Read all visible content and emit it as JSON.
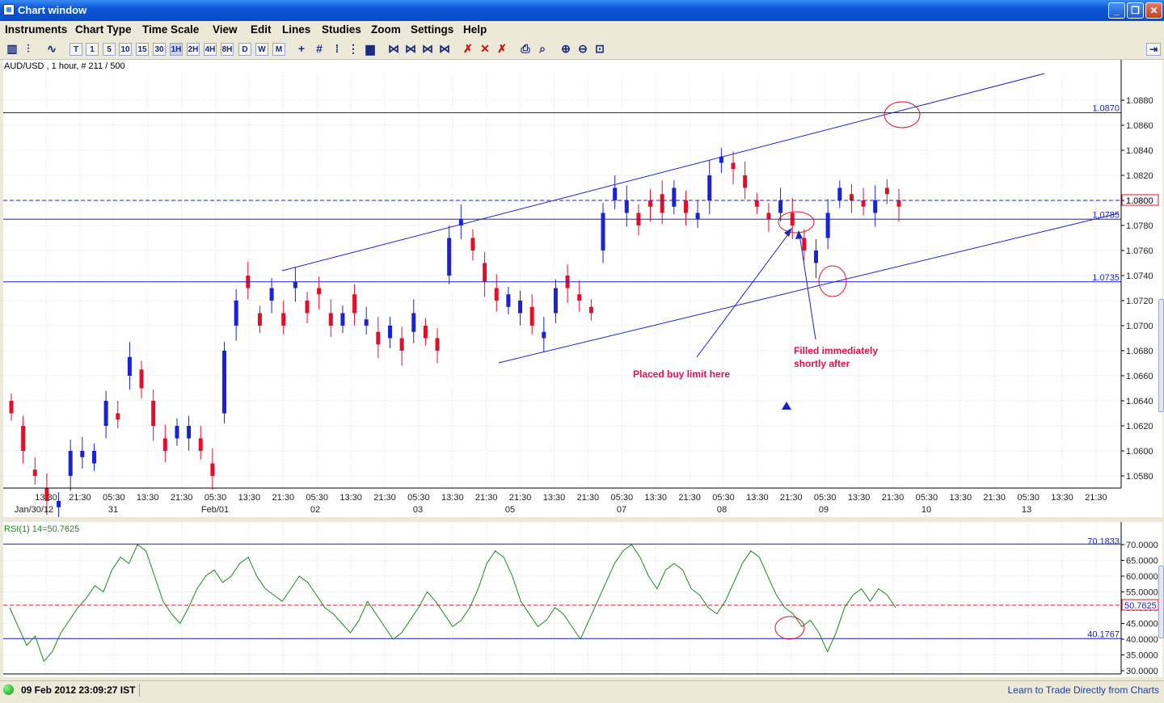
{
  "window": {
    "title": "Chart window",
    "buttons": [
      "_",
      "❐",
      "✕"
    ]
  },
  "menu": [
    "Instruments",
    "Chart Type",
    "Time Scale",
    "View",
    "Edit",
    "Lines",
    "Studies",
    "Zoom",
    "Settings",
    "Help"
  ],
  "toolbar": {
    "timeframes": [
      "T",
      "1",
      "5",
      "10",
      "15",
      "30",
      "1H",
      "2H",
      "4H",
      "8H",
      "D",
      "W",
      "M"
    ],
    "selected_timeframe": "1H",
    "icons": [
      "chart-type-icon",
      "bar-chart-icon",
      "line-chart-icon",
      "crosshair-icon",
      "grid-icon",
      "volume-icon",
      "fib-icon",
      "pitchfork-icon",
      "delete-line-icon",
      "delete-icon",
      "delete-all-icon",
      "print-icon",
      "print-preview-icon",
      "zoom-in-icon",
      "zoom-out-icon",
      "zoom-fit-icon",
      "detach-icon"
    ]
  },
  "main_chart": {
    "header": "AUD/USD , 1 hour, # 211 / 500",
    "price_ticks": [
      "1.0880",
      "1.0860",
      "1.0840",
      "1.0820",
      "1.0800",
      "1.0780",
      "1.0760",
      "1.0740",
      "1.0720",
      "1.0700",
      "1.0680",
      "1.0660",
      "1.0640",
      "1.0620",
      "1.0600",
      "1.0580"
    ],
    "current_price": "1.0800",
    "levels": [
      {
        "label": "1.0870",
        "value": 1.087
      },
      {
        "label": "1.0785",
        "value": 1.0785
      },
      {
        "label": "1.0735",
        "value": 1.0735
      }
    ],
    "time_labels": [
      "13:30",
      "21:30",
      "05:30",
      "13:30",
      "21:30",
      "05:30",
      "13:30",
      "21:30",
      "05:30",
      "13:30",
      "21:30",
      "05:30",
      "13:30",
      "21:30",
      "21:30",
      "13:30",
      "21:30",
      "05:30",
      "13:30",
      "21:30",
      "05:30",
      "13:30",
      "21:30",
      "05:30",
      "13:30",
      "21:30",
      "05:30",
      "13:30",
      "21:30",
      "05:30",
      "13:30",
      "21:30"
    ],
    "date_labels": [
      "Jan/30/12",
      "31",
      "Feb/01",
      "02",
      "03",
      "05",
      "07",
      "08",
      "09",
      "10",
      "13"
    ],
    "annotations": {
      "buy_limit": "Placed buy limit here",
      "filled_line1": "Filled immediately",
      "filled_line2": "shortly after"
    }
  },
  "rsi": {
    "header": "RSI(1) 14=50.7625",
    "ticks": [
      "70.0000",
      "65.0000",
      "60.0000",
      "55.0000",
      "50.0000",
      "45.0000",
      "40.0000",
      "35.0000",
      "30.0000"
    ],
    "upper_label": "70.1833",
    "lower_label": "40.1767",
    "current_label": "50.7625"
  },
  "status": {
    "datetime": "09 Feb 2012 23:09:27 IST",
    "link": "Learn to Trade Directly from Charts"
  },
  "colors": {
    "bull": "#1a22d8",
    "bear": "#e0102a",
    "line": "#1a22c8",
    "rsi_line": "#1a8a1a",
    "annotation": "#e0104a"
  }
}
